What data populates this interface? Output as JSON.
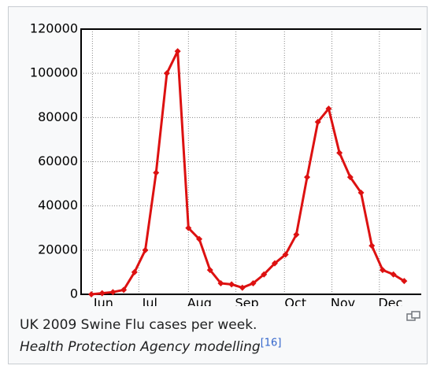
{
  "chart_data": {
    "type": "line",
    "caption": "UK 2009 Swine Flu cases per week.",
    "source": "Health Protection Agency modelling",
    "reference": "[16]",
    "x": [
      0,
      1,
      2,
      3,
      4,
      5,
      6,
      7,
      8,
      9,
      10,
      11,
      12,
      13,
      14,
      15,
      16,
      17,
      18,
      19,
      20,
      21,
      22,
      23,
      24,
      25,
      26,
      27,
      28,
      29
    ],
    "series": [
      {
        "name": null,
        "color": "#dd1111",
        "values": [
          0,
          500,
          1000,
          2000,
          10000,
          20000,
          55000,
          100000,
          110000,
          30000,
          25000,
          11000,
          5000,
          4500,
          3000,
          5000,
          9000,
          14000,
          18000,
          27000,
          53000,
          78000,
          84000,
          64000,
          53000,
          46000,
          22000,
          11000,
          9000,
          6000
        ]
      }
    ],
    "xlim": [
      -0.95,
      30.8
    ],
    "xticks": [
      {
        "value": 0.1,
        "label": "Jun"
      },
      {
        "value": 4.4,
        "label": "Jul"
      },
      {
        "value": 9.0,
        "label": "Aug"
      },
      {
        "value": 13.4,
        "label": "Sep"
      },
      {
        "value": 17.9,
        "label": "Oct"
      },
      {
        "value": 22.3,
        "label": "Nov"
      },
      {
        "value": 26.7,
        "label": "Dec"
      }
    ],
    "ylim": [
      0,
      120000
    ],
    "yticks": [
      0,
      20000,
      40000,
      60000,
      80000,
      100000,
      120000
    ],
    "grid": true
  }
}
